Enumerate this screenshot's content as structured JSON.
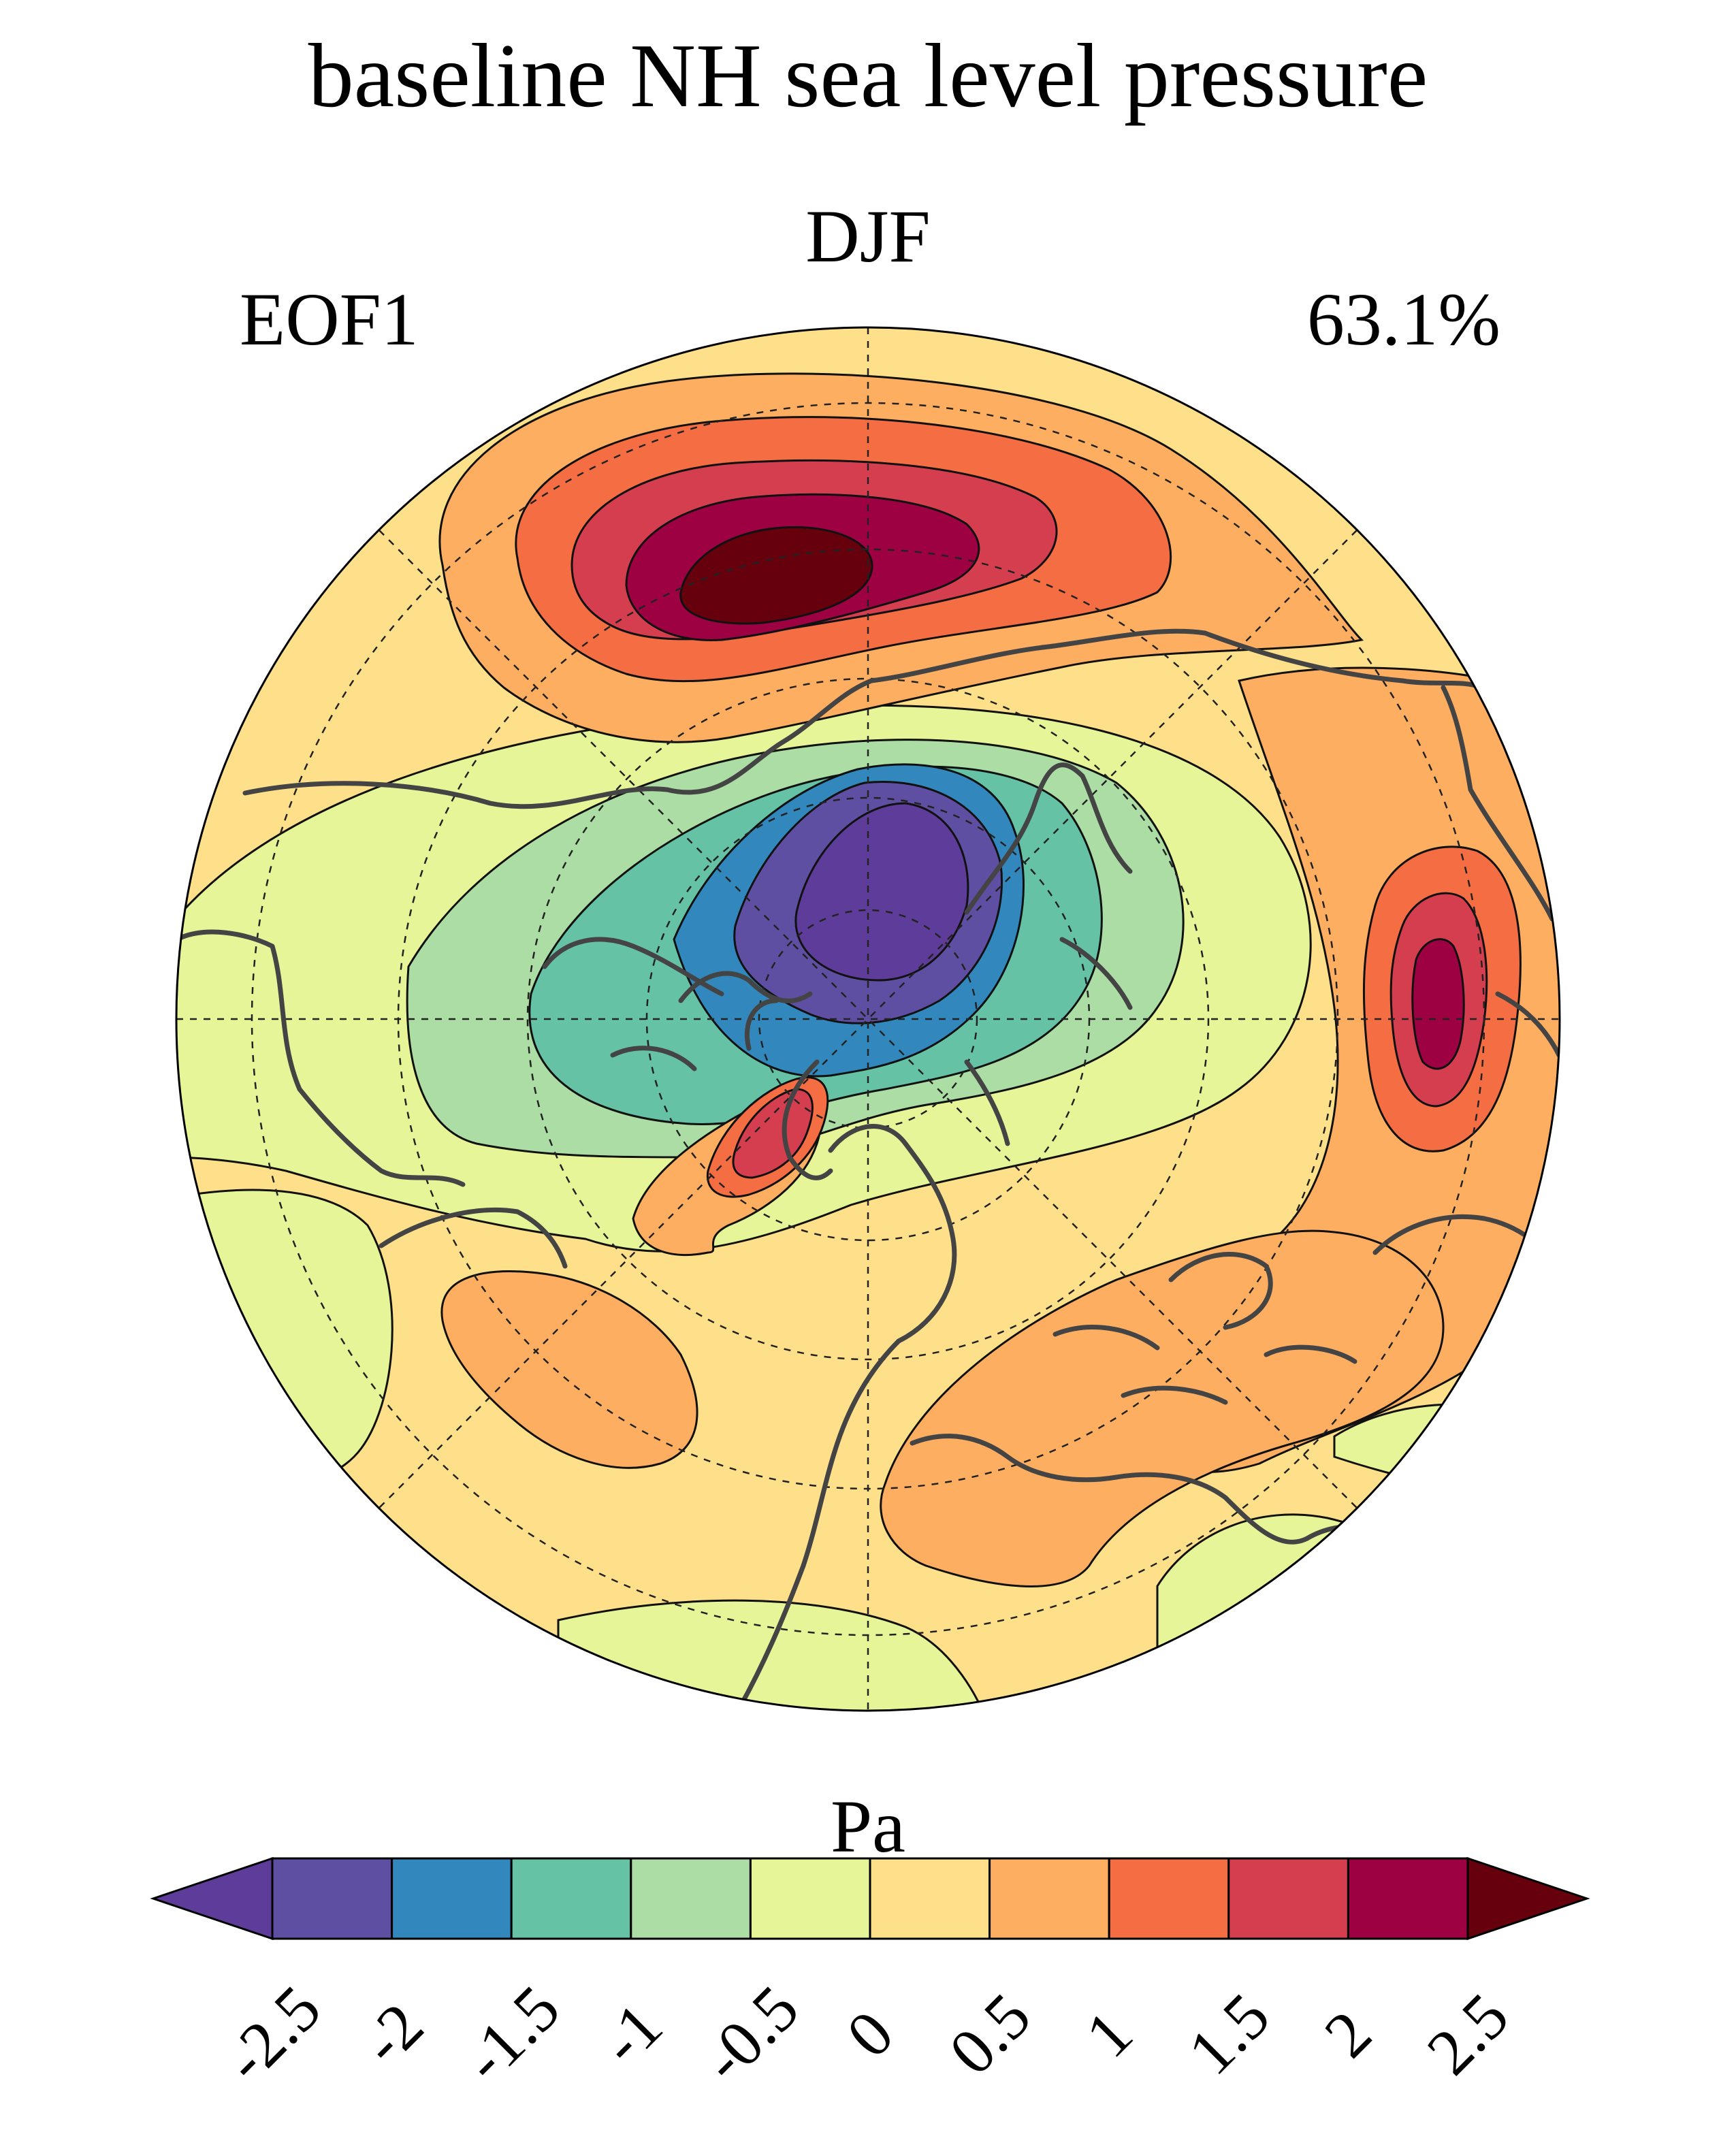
{
  "title": "baseline NH sea level pressure",
  "season": "DJF",
  "mode": "EOF1",
  "variance_explained": "63.1%",
  "colorbar": {
    "units": "Pa",
    "tick_labels": [
      "-2.5",
      "-2",
      "-1.5",
      "-1",
      "-0.5",
      "0",
      "0.5",
      "1",
      "1.5",
      "2",
      "2.5"
    ],
    "levels": [
      -2.5,
      -2,
      -1.5,
      -1,
      -0.5,
      0,
      0.5,
      1,
      1.5,
      2,
      2.5
    ],
    "colors": [
      "#5e3c99",
      "#5e4fa2",
      "#3288bd",
      "#66c2a5",
      "#abdda4",
      "#e6f598",
      "#fee08b",
      "#fdae61",
      "#f46d43",
      "#d53e4f",
      "#9e0142",
      "#67000d"
    ],
    "extend": "both"
  },
  "map": {
    "projection": "north polar stereographic",
    "background_color": "#fee08b",
    "coastline_color": "#404040",
    "gridlines": "dashed"
  }
}
